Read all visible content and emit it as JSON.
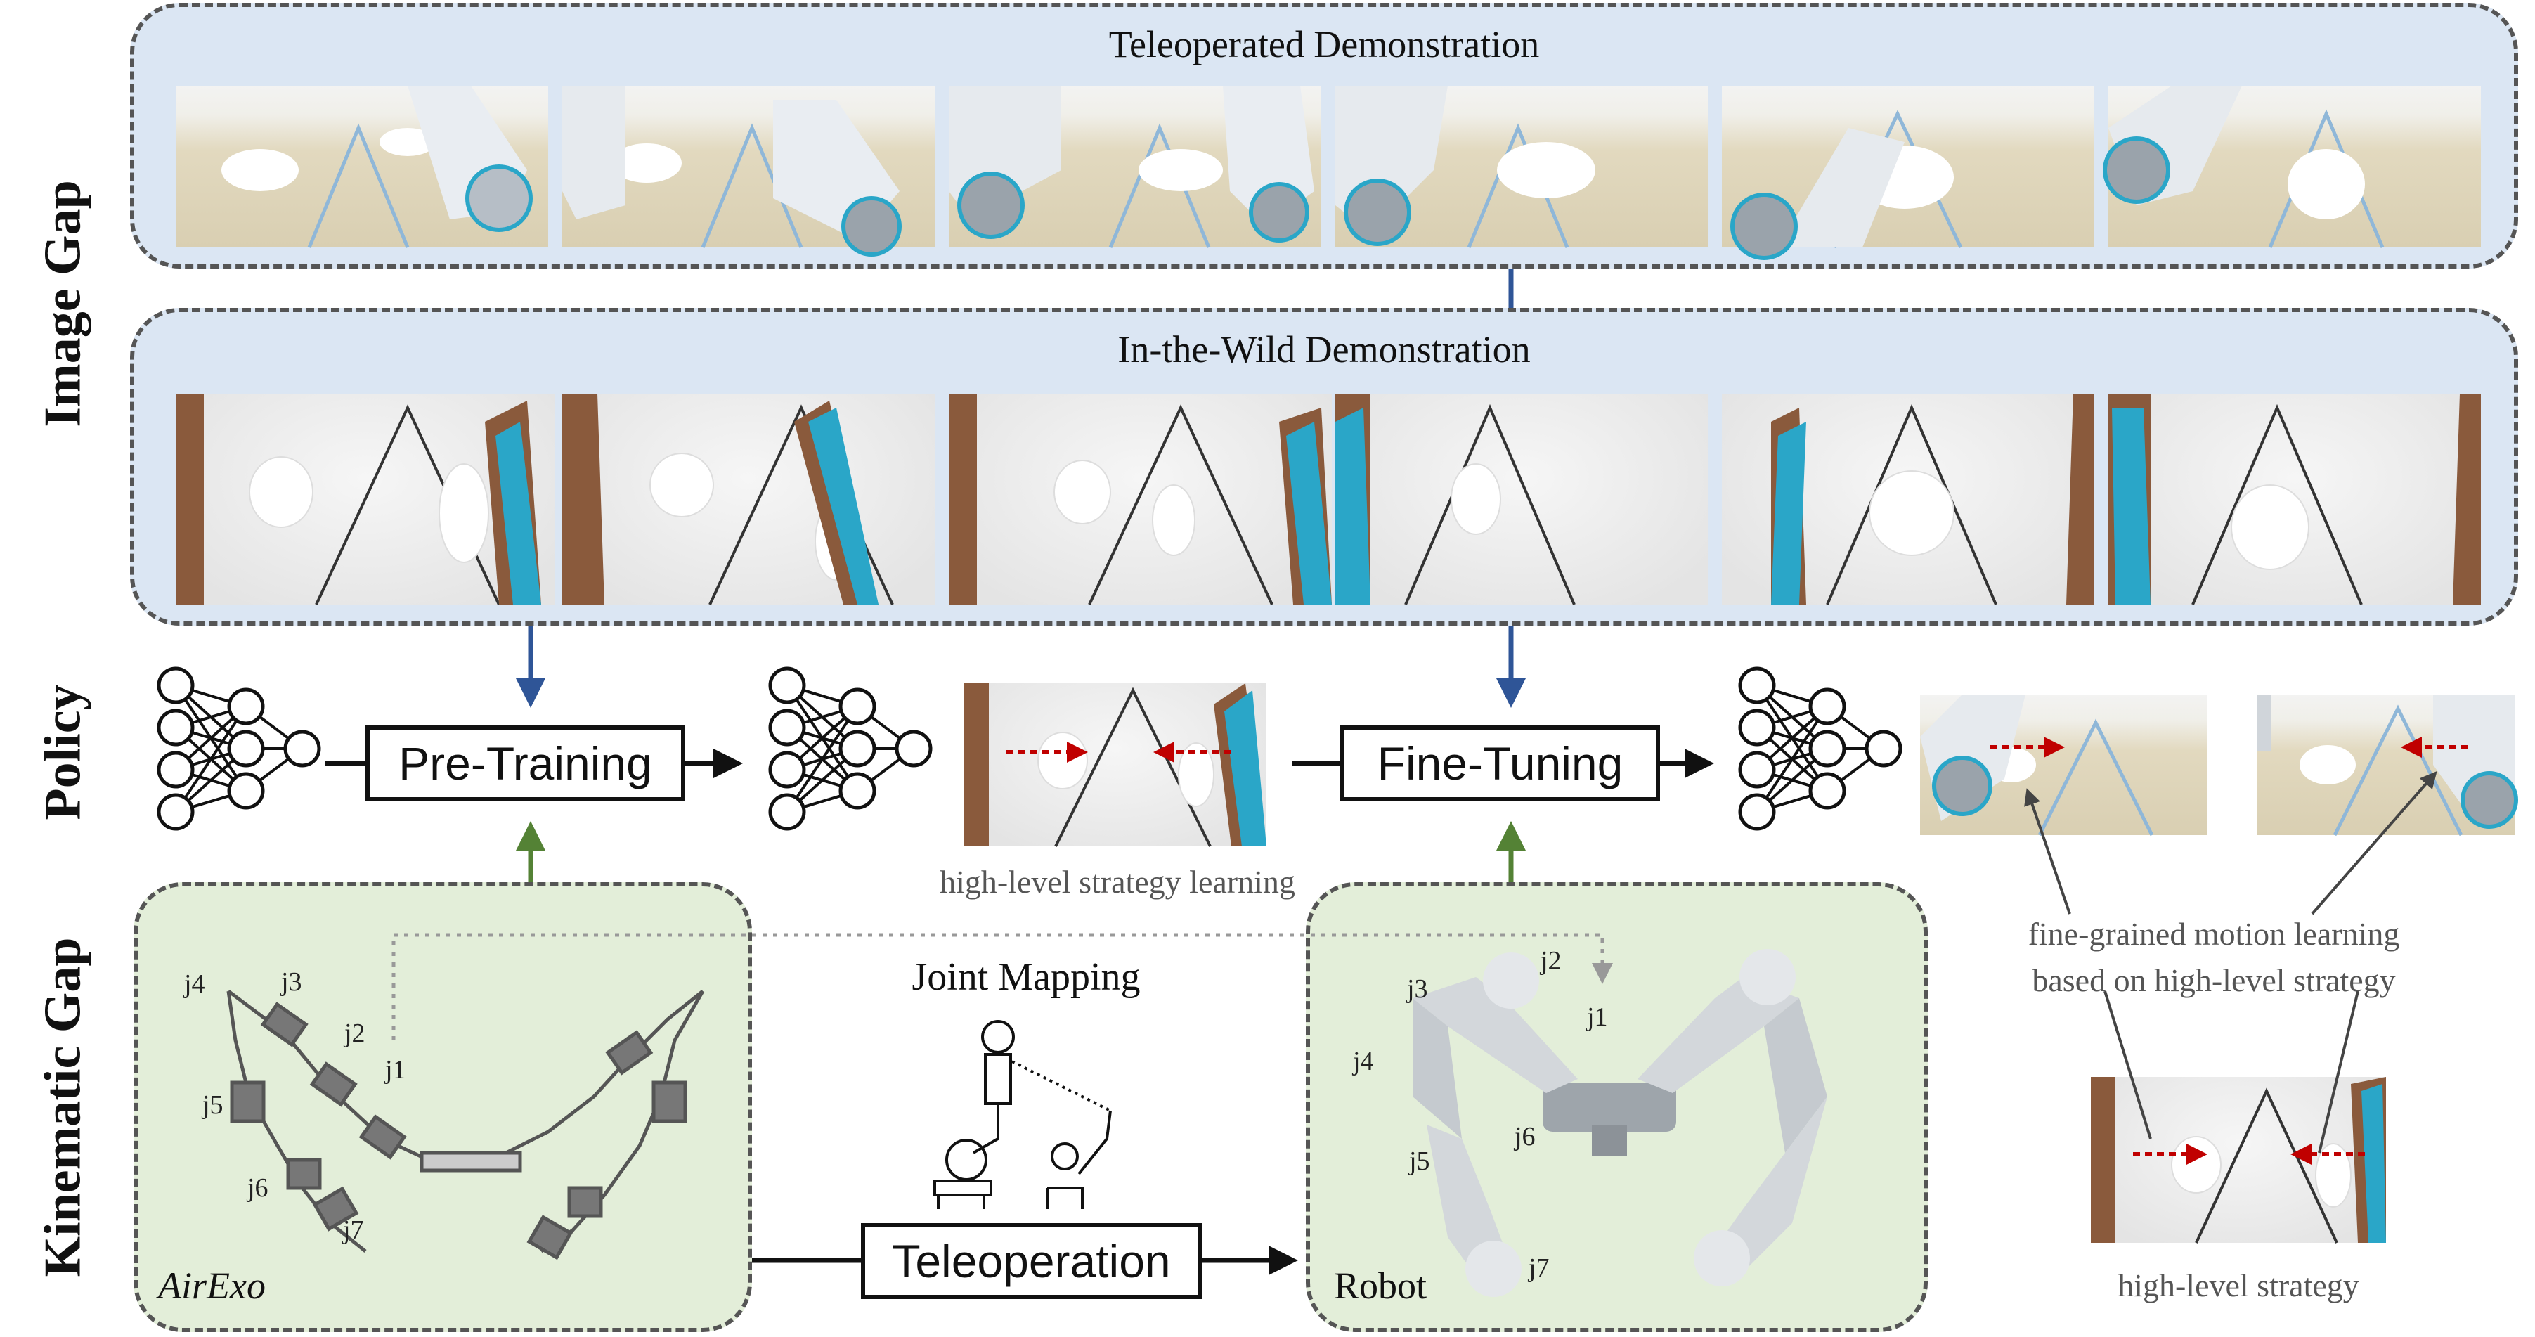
{
  "side_labels": {
    "image_gap": "Image Gap",
    "policy": "Policy",
    "kinematic_gap": "Kinematic Gap"
  },
  "teleoperated": {
    "title": "Teleoperated Demonstration",
    "frame_count": 6
  },
  "in_the_wild": {
    "title": "In-the-Wild Demonstration",
    "frame_count": 6
  },
  "policy": {
    "pretraining_label": "Pre-Training",
    "finetuning_label": "Fine-Tuning",
    "high_level_strategy_learning": "high-level strategy learning",
    "fine_grained_line1": "fine-grained motion learning",
    "fine_grained_line2": "based on high-level strategy",
    "high_level_strategy": "high-level strategy"
  },
  "kinematic": {
    "airexo_label": "AirExo",
    "robot_label": "Robot",
    "joint_mapping": "Joint Mapping",
    "teleoperation_label": "Teleoperation",
    "airexo_joints": [
      "j1",
      "j2",
      "j3",
      "j4",
      "j5",
      "j6",
      "j7"
    ],
    "robot_joints": [
      "j1",
      "j2",
      "j3",
      "j4",
      "j5",
      "j6",
      "j7"
    ]
  },
  "colors": {
    "blue_panel": "#dbe6f3",
    "green_panel": "#e3eed9",
    "blue_arrow": "#2f5597",
    "green_arrow": "#548235",
    "red_arrow": "#c00000",
    "teal_arm": "#2aa6c8"
  }
}
